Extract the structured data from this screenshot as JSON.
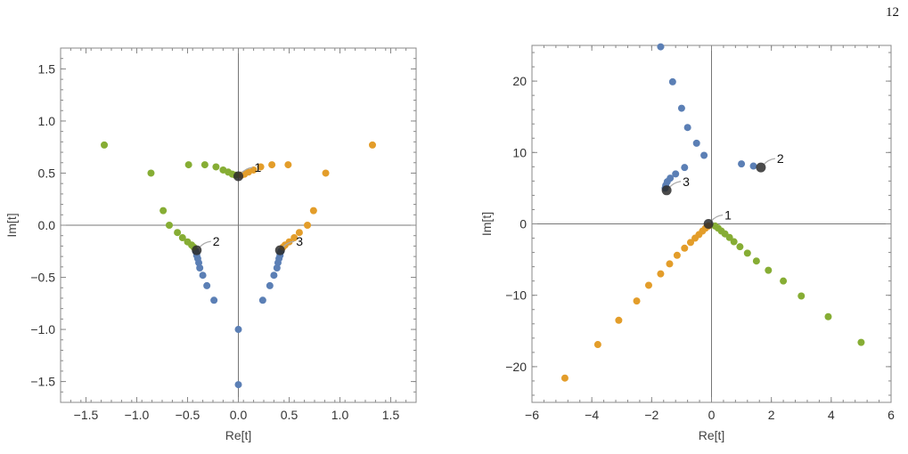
{
  "page": {
    "number": "12"
  },
  "colors": {
    "blue": "#5b7fb5",
    "orange": "#e39d2a",
    "green": "#86ad34",
    "highlight": "#2b2b2b",
    "frame": "#888888",
    "axis": "#777777"
  },
  "chart_data": [
    {
      "type": "scatter",
      "xlabel": "Re[t]",
      "ylabel": "Im[t]",
      "xlim": [
        -1.75,
        1.75
      ],
      "ylim": [
        -1.7,
        1.7
      ],
      "xticks": [
        -1.5,
        -1.0,
        -0.5,
        0.0,
        0.5,
        1.0,
        1.5
      ],
      "xtick_labels": [
        "−1.5",
        "−1.0",
        "−0.5",
        "0.0",
        "0.5",
        "1.0",
        "1.5"
      ],
      "yticks": [
        -1.5,
        -1.0,
        -0.5,
        0.0,
        0.5,
        1.0,
        1.5
      ],
      "ytick_labels": [
        "−1.5",
        "−1.0",
        "−0.5",
        "0.0",
        "0.5",
        "1.0",
        "1.5"
      ],
      "grid": false,
      "series": [
        {
          "color": "blue",
          "points": [
            [
              0.0,
              -1.53
            ],
            [
              0.0,
              -1.0
            ],
            [
              -0.24,
              -0.72
            ],
            [
              -0.31,
              -0.58
            ],
            [
              -0.35,
              -0.48
            ],
            [
              -0.38,
              -0.41
            ],
            [
              -0.39,
              -0.36
            ],
            [
              -0.4,
              -0.32
            ],
            [
              -0.41,
              -0.29
            ],
            [
              -0.41,
              -0.27
            ],
            [
              -0.42,
              -0.25
            ],
            [
              0.24,
              -0.72
            ],
            [
              0.31,
              -0.58
            ],
            [
              0.35,
              -0.48
            ],
            [
              0.38,
              -0.41
            ],
            [
              0.39,
              -0.36
            ],
            [
              0.4,
              -0.32
            ],
            [
              0.41,
              -0.29
            ],
            [
              0.41,
              -0.27
            ],
            [
              0.42,
              -0.25
            ]
          ]
        },
        {
          "color": "orange",
          "points": [
            [
              1.32,
              0.77
            ],
            [
              0.86,
              0.5
            ],
            [
              0.74,
              0.14
            ],
            [
              0.68,
              0.0
            ],
            [
              0.6,
              -0.07
            ],
            [
              0.55,
              -0.12
            ],
            [
              0.5,
              -0.16
            ],
            [
              0.46,
              -0.19
            ],
            [
              0.44,
              -0.21
            ],
            [
              0.49,
              0.58
            ],
            [
              0.33,
              0.58
            ],
            [
              0.22,
              0.56
            ],
            [
              0.15,
              0.53
            ],
            [
              0.1,
              0.51
            ],
            [
              0.06,
              0.49
            ],
            [
              0.03,
              0.48
            ]
          ]
        },
        {
          "color": "green",
          "points": [
            [
              -1.32,
              0.77
            ],
            [
              -0.86,
              0.5
            ],
            [
              -0.74,
              0.14
            ],
            [
              -0.68,
              0.0
            ],
            [
              -0.6,
              -0.07
            ],
            [
              -0.55,
              -0.12
            ],
            [
              -0.5,
              -0.16
            ],
            [
              -0.46,
              -0.19
            ],
            [
              -0.44,
              -0.21
            ],
            [
              -0.49,
              0.58
            ],
            [
              -0.33,
              0.58
            ],
            [
              -0.22,
              0.56
            ],
            [
              -0.15,
              0.53
            ],
            [
              -0.1,
              0.51
            ],
            [
              -0.06,
              0.49
            ],
            [
              -0.03,
              0.48
            ]
          ]
        }
      ],
      "highlights": [
        {
          "label": "1",
          "x": 0.0,
          "y": 0.47
        },
        {
          "label": "2",
          "x": -0.41,
          "y": -0.24
        },
        {
          "label": "3",
          "x": 0.41,
          "y": -0.24
        }
      ]
    },
    {
      "type": "scatter",
      "xlabel": "Re[t]",
      "ylabel": "Im[t]",
      "xlim": [
        -6.0,
        6.0
      ],
      "ylim": [
        -25.0,
        25.0
      ],
      "xticks": [
        -6,
        -4,
        -2,
        0,
        2,
        4,
        6
      ],
      "xtick_labels": [
        "−6",
        "−4",
        "−2",
        "0",
        "2",
        "4",
        "6"
      ],
      "yticks": [
        -20,
        -10,
        0,
        10,
        20
      ],
      "ytick_labels": [
        "−20",
        "−10",
        "0",
        "10",
        "20"
      ],
      "grid": false,
      "series": [
        {
          "color": "blue",
          "points": [
            [
              -1.7,
              24.8
            ],
            [
              -1.3,
              19.9
            ],
            [
              -1.0,
              16.2
            ],
            [
              -0.8,
              13.5
            ],
            [
              -0.5,
              11.3
            ],
            [
              -0.25,
              9.6
            ],
            [
              1.0,
              8.4
            ],
            [
              1.4,
              8.1
            ],
            [
              -0.9,
              7.9
            ],
            [
              -1.2,
              7.0
            ],
            [
              -1.38,
              6.4
            ],
            [
              -1.48,
              5.9
            ],
            [
              -1.53,
              5.4
            ],
            [
              -1.55,
              5.0
            ]
          ]
        },
        {
          "color": "orange",
          "points": [
            [
              -4.9,
              -21.6
            ],
            [
              -3.8,
              -16.9
            ],
            [
              -3.1,
              -13.5
            ],
            [
              -2.5,
              -10.8
            ],
            [
              -2.1,
              -8.6
            ],
            [
              -1.7,
              -7.0
            ],
            [
              -1.4,
              -5.6
            ],
            [
              -1.15,
              -4.4
            ],
            [
              -0.9,
              -3.4
            ],
            [
              -0.7,
              -2.6
            ],
            [
              -0.55,
              -2.0
            ],
            [
              -0.42,
              -1.5
            ],
            [
              -0.3,
              -1.0
            ],
            [
              -0.2,
              -0.6
            ],
            [
              -0.1,
              -0.3
            ]
          ]
        },
        {
          "color": "green",
          "points": [
            [
              5.0,
              -16.6
            ],
            [
              3.9,
              -13.0
            ],
            [
              3.0,
              -10.1
            ],
            [
              2.4,
              -8.0
            ],
            [
              1.9,
              -6.5
            ],
            [
              1.5,
              -5.2
            ],
            [
              1.2,
              -4.1
            ],
            [
              0.95,
              -3.2
            ],
            [
              0.75,
              -2.5
            ],
            [
              0.6,
              -1.9
            ],
            [
              0.45,
              -1.4
            ],
            [
              0.33,
              -1.0
            ],
            [
              0.22,
              -0.6
            ],
            [
              0.12,
              -0.3
            ]
          ]
        }
      ],
      "highlights": [
        {
          "label": "1",
          "x": -0.1,
          "y": 0.0
        },
        {
          "label": "2",
          "x": 1.65,
          "y": 7.9
        },
        {
          "label": "3",
          "x": -1.5,
          "y": 4.7
        }
      ]
    }
  ]
}
